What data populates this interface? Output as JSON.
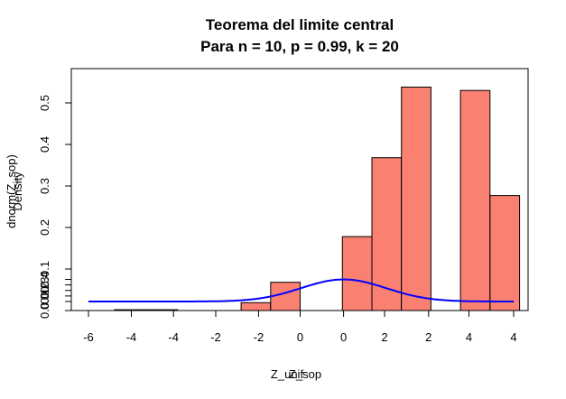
{
  "chart_data": {
    "type": "bar",
    "title": "Teorema del limite central",
    "subtitle": "Para n = 10, p = 0.99, k = 20",
    "xlabel_a": "Z_unif",
    "xlabel_b": "Z_sop",
    "ylabel_a": "dnorm(Z_sop)",
    "ylabel_b": "Density",
    "histogram": {
      "name": "Z_sop",
      "fill": "#FA8072",
      "border": "#000000",
      "bins": [
        {
          "x0": -4.4,
          "x1": -2.9,
          "density": 0.002
        },
        {
          "x0": -1.4,
          "x1": -0.7,
          "density": 0.019
        },
        {
          "x0": -0.7,
          "x1": 0.0,
          "density": 0.068
        },
        {
          "x0": 1.0,
          "x1": 1.7,
          "density": 0.178
        },
        {
          "x0": 1.7,
          "x1": 2.4,
          "density": 0.368
        },
        {
          "x0": 2.4,
          "x1": 3.1,
          "density": 0.538
        },
        {
          "x0": 3.8,
          "x1": 4.5,
          "density": 0.53
        },
        {
          "x0": 4.5,
          "x1": 5.2,
          "density": 0.277
        }
      ]
    },
    "curve": {
      "name": "dnorm(Z_sop)",
      "color": "#0000FF",
      "mean": 0,
      "sd": 1,
      "xlim": [
        -6,
        4
      ]
    },
    "axis_bottom": {
      "ticks": [
        {
          "label": "-6",
          "value": -6
        },
        {
          "label": "-4",
          "value": -4
        },
        {
          "label": "-2",
          "value": -2
        },
        {
          "label": "0",
          "value": 0
        },
        {
          "label": "2",
          "value": 2
        },
        {
          "label": "4",
          "value": 4
        }
      ]
    },
    "axis_bottom_overlay": {
      "ticks": [
        {
          "label": "-4",
          "value": -4
        },
        {
          "label": "-2",
          "value": -2
        },
        {
          "label": "0",
          "value": 0
        },
        {
          "label": "2",
          "value": 2
        },
        {
          "label": "4",
          "value": 4
        }
      ]
    },
    "axis_left": {
      "ticks": [
        {
          "label": "0.0",
          "value": 0.0
        },
        {
          "label": "0.1",
          "value": 0.1
        },
        {
          "label": "0.2",
          "value": 0.2
        },
        {
          "label": "0.3",
          "value": 0.3
        },
        {
          "label": "0.4",
          "value": 0.4
        }
      ]
    },
    "axis_left_overlay": {
      "ticks": [
        {
          "label": "0.0",
          "value": 0.0
        },
        {
          "label": "0.1",
          "value": 0.1
        },
        {
          "label": "0.2",
          "value": 0.2
        },
        {
          "label": "0.3",
          "value": 0.3
        },
        {
          "label": "0.4",
          "value": 0.4
        },
        {
          "label": "0.5",
          "value": 0.5
        }
      ]
    },
    "grid": false,
    "legend": "none"
  }
}
